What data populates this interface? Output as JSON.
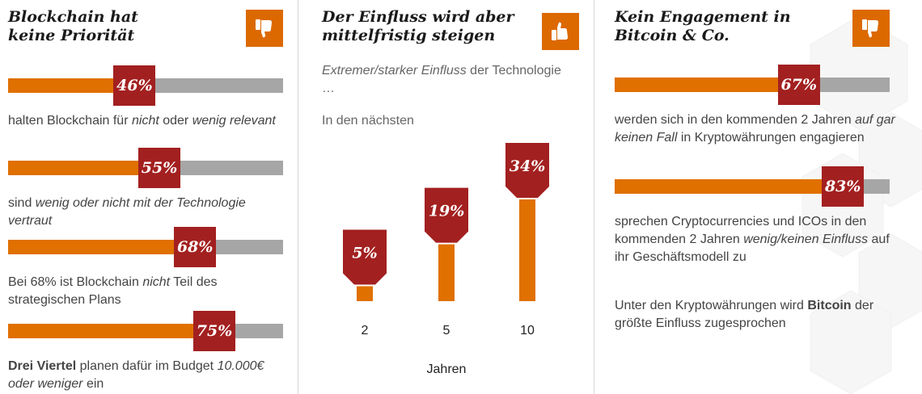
{
  "panels": [
    {
      "title_line1": "Blockchain hat",
      "title_line2": "keine Priorität",
      "icon": "thumbs-down-icon",
      "items": [
        {
          "pct": 46,
          "label": "46%",
          "desc": [
            {
              "t": "halten Blockchain für "
            },
            {
              "t": "nicht",
              "i": true
            },
            {
              "t": " oder "
            },
            {
              "t": "wenig relevant",
              "i": true
            }
          ]
        },
        {
          "pct": 55,
          "label": "55%",
          "desc": [
            {
              "t": "sind "
            },
            {
              "t": "wenig oder nicht mit der Technologie vertraut",
              "i": true
            }
          ]
        },
        {
          "pct": 68,
          "label": "68%",
          "desc": [
            {
              "t": "Bei 68% ist Blockchain "
            },
            {
              "t": "nicht",
              "i": true
            },
            {
              "t": " Teil des strategischen Plans"
            }
          ]
        },
        {
          "pct": 75,
          "label": "75%",
          "desc": [
            {
              "t": "Drei Viertel",
              "b": true
            },
            {
              "t": " planen dafür im Budget "
            },
            {
              "t": "10.000€ oder weniger",
              "i": true
            },
            {
              "t": " ein"
            }
          ]
        }
      ]
    },
    {
      "title_line1": "Der Einfluss wird aber",
      "title_line2": "mittelfristig steigen",
      "icon": "thumbs-up-icon",
      "intro": [
        {
          "t": "Extremer/starker Einfluss",
          "i": true
        },
        {
          "t": " der Technologie …"
        }
      ],
      "in_next": "In den nächsten",
      "x_title": "Jahren"
    },
    {
      "title_line1": "Kein Engagement in",
      "title_line2": "Bitcoin & Co.",
      "icon": "thumbs-down-icon",
      "items": [
        {
          "pct": 67,
          "label": "67%",
          "desc": [
            {
              "t": "werden sich in den kommenden 2 Jahren "
            },
            {
              "t": "auf gar keinen Fall",
              "i": true
            },
            {
              "t": " in Kryptowährungen engagieren"
            }
          ]
        },
        {
          "pct": 83,
          "label": "83%",
          "desc": [
            {
              "t": "sprechen Cryptocurrencies und ICOs in den kommenden 2 Jahren "
            },
            {
              "t": "wenig/keinen Einfluss",
              "i": true
            },
            {
              "t": " auf ihr Geschäftsmodell zu"
            }
          ]
        }
      ],
      "footer": [
        {
          "t": "Unter den Kryptowährungen wird "
        },
        {
          "t": "Bitcoin",
          "b": true
        },
        {
          "t": " der größte Einfluss zugesprochen"
        }
      ]
    }
  ],
  "chart_data": {
    "type": "bar",
    "categories": [
      "2",
      "5",
      "10"
    ],
    "values": [
      5,
      19,
      34
    ],
    "value_labels": [
      "5%",
      "19%",
      "34%"
    ],
    "xlabel": "Jahren",
    "unit": "%"
  },
  "colors": {
    "orange": "#e07000",
    "red": "#a32020",
    "grey": "#a6a6a6",
    "icon_bg": "#dc6900"
  }
}
